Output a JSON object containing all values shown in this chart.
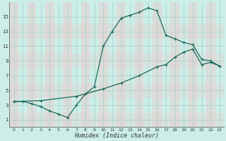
{
  "xlabel": "Humidex (Indice chaleur)",
  "background_color": "#cceee8",
  "grid_major_color": "#aad4cc",
  "grid_minor_color": "#d4b8b8",
  "line_color": "#1a6b5a",
  "xlim": [
    -0.5,
    23.5
  ],
  "ylim": [
    0,
    17
  ],
  "xticks": [
    0,
    1,
    2,
    3,
    4,
    5,
    6,
    7,
    8,
    9,
    10,
    11,
    12,
    13,
    14,
    15,
    16,
    17,
    18,
    19,
    20,
    21,
    22,
    23
  ],
  "yticks": [
    1,
    3,
    5,
    7,
    9,
    11,
    13,
    15
  ],
  "curve1_x": [
    0,
    1,
    2,
    3,
    4,
    5,
    6,
    7,
    8,
    9,
    10,
    11,
    12,
    13,
    14,
    15,
    16,
    17,
    18,
    19,
    20,
    21,
    22,
    23
  ],
  "curve1_y": [
    3.5,
    3.5,
    3.2,
    2.8,
    2.2,
    1.8,
    1.3,
    3.0,
    4.5,
    5.5,
    11.0,
    13.0,
    14.8,
    15.2,
    15.6,
    16.2,
    15.8,
    12.5,
    12.0,
    11.5,
    11.2,
    9.2,
    9.0,
    8.3
  ],
  "curve2_x": [
    0,
    3,
    7,
    10,
    12,
    14,
    16,
    17,
    18,
    19,
    20,
    21,
    22,
    23
  ],
  "curve2_y": [
    3.5,
    3.6,
    4.2,
    5.2,
    6.0,
    7.0,
    8.2,
    8.5,
    9.5,
    10.2,
    10.6,
    8.5,
    8.8,
    8.3
  ]
}
